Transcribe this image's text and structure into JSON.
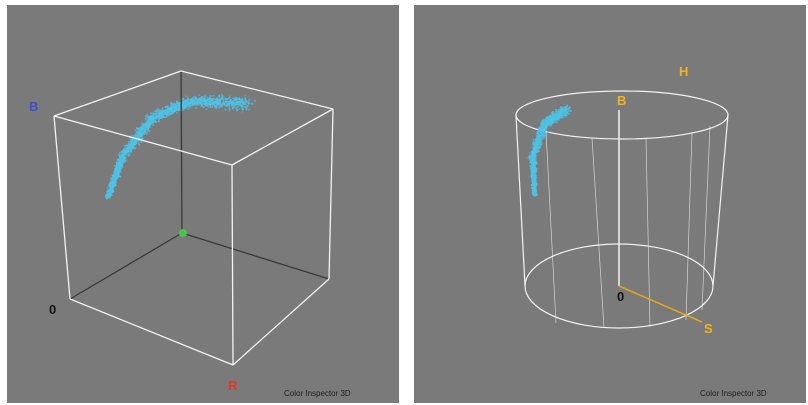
{
  "colors": {
    "background": "#7a7a7a",
    "wireframe": "#f2f2f2",
    "axis_dark": "#3a3a3a",
    "point_cloud": "#4fc3e6",
    "label_blue": "#3c4fd0",
    "label_red": "#e03a2a",
    "label_black": "#111111",
    "label_yellow": "#f2b21a",
    "green_origin": "#3fd24a",
    "saturation_axis": "#e0a81a"
  },
  "rgb_view": {
    "labels": {
      "blue": "B",
      "red": "R",
      "origin": "0"
    },
    "caption": "Color Inspector 3D"
  },
  "hsb_view": {
    "labels": {
      "hue": "H",
      "brightness": "B",
      "saturation": "S",
      "origin": "0"
    },
    "caption": "Color Inspector 3D"
  }
}
